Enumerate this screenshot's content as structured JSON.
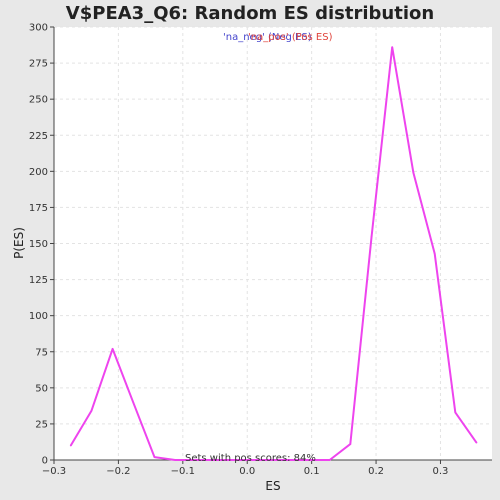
{
  "chart_data": {
    "type": "line",
    "title": "V$PEA3_Q6: Random ES distribution",
    "xlabel": "ES",
    "ylabel": "P(ES)",
    "xlim": [
      -0.3,
      0.38
    ],
    "ylim": [
      0,
      300
    ],
    "x_ticks": [
      -0.3,
      -0.2,
      -0.1,
      0.0,
      0.1,
      0.2,
      0.3
    ],
    "x_tick_labels": [
      "−0.3",
      "−0.2",
      "−0.1",
      "0.0",
      "0.1",
      "0.2",
      "0.3"
    ],
    "y_ticks": [
      0,
      25,
      50,
      75,
      100,
      125,
      150,
      175,
      200,
      225,
      250,
      275,
      300
    ],
    "y_tick_labels": [
      "0",
      "25",
      "50",
      "75",
      "100",
      "125",
      "150",
      "175",
      "200",
      "225",
      "250",
      "275",
      "300"
    ],
    "grid": true,
    "legend": {
      "placement": "top-center",
      "entries": [
        {
          "label": "'na_neg' (Neg ES)",
          "color": "#4444cc"
        },
        {
          "label": "'na_pos' (Pos ES)",
          "color": "#e0443c"
        }
      ]
    },
    "series": [
      {
        "color": "#ee44ee",
        "x": [
          -0.274,
          -0.242,
          -0.209,
          -0.177,
          -0.144,
          -0.112,
          -0.079,
          -0.047,
          -0.014,
          0.018,
          0.051,
          0.083,
          0.116,
          0.128,
          0.16,
          0.193,
          0.225,
          0.258,
          0.291,
          0.323,
          0.356
        ],
        "y": [
          10,
          34,
          77,
          40,
          2,
          0,
          0,
          0,
          0,
          0,
          0,
          0,
          0,
          0,
          11,
          155,
          286,
          199,
          143,
          33,
          12
        ]
      }
    ],
    "annotations": [
      "Sets with pos scores: 84%"
    ]
  },
  "colors": {
    "background": "#e8e8e8",
    "plot_background": "#ffffff",
    "line": "#ee44ee"
  }
}
